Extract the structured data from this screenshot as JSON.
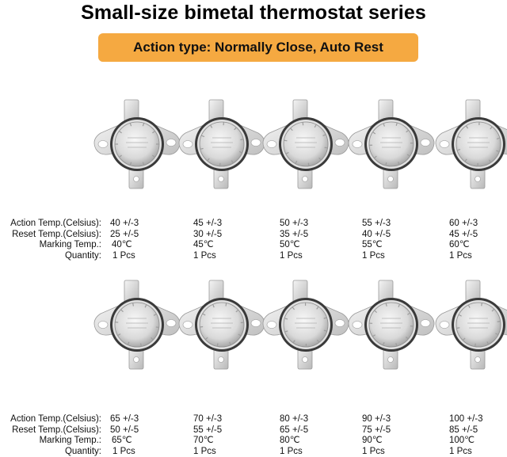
{
  "title": "Small-size bimetal thermostat series",
  "banner": {
    "text": "Action type: Normally Close, Auto Rest",
    "color": "#F5A941"
  },
  "row_labels": {
    "action": "Action Temp.(Celsius):",
    "reset": "Reset  Temp.(Celsius):",
    "marking": "Marking Temp.:",
    "quantity": "Quantity:"
  },
  "items": [
    {
      "action": "40 +/-3",
      "reset": "25 +/-5",
      "marking": "40℃",
      "quantity": "1 Pcs"
    },
    {
      "action": "45 +/-3",
      "reset": "30 +/-5",
      "marking": "45℃",
      "quantity": "1 Pcs"
    },
    {
      "action": "50 +/-3",
      "reset": "35 +/-5",
      "marking": "50℃",
      "quantity": "1 Pcs"
    },
    {
      "action": "55 +/-3",
      "reset": "40 +/-5",
      "marking": "55℃",
      "quantity": "1 Pcs"
    },
    {
      "action": "60 +/-3",
      "reset": "45 +/-5",
      "marking": "60℃",
      "quantity": "1 Pcs"
    },
    {
      "action": "65 +/-3",
      "reset": "50 +/-5",
      "marking": "65℃",
      "quantity": "1 Pcs"
    },
    {
      "action": "70 +/-3",
      "reset": "55 +/-5",
      "marking": "70℃",
      "quantity": "1 Pcs"
    },
    {
      "action": "80 +/-3",
      "reset": "65 +/-5",
      "marking": "80℃",
      "quantity": "1 Pcs"
    },
    {
      "action": "90 +/-3",
      "reset": "75 +/-5",
      "marking": "90℃",
      "quantity": "1 Pcs"
    },
    {
      "action": "100 +/-3",
      "reset": "85 +/-5",
      "marking": "100℃",
      "quantity": "1 Pcs"
    }
  ]
}
